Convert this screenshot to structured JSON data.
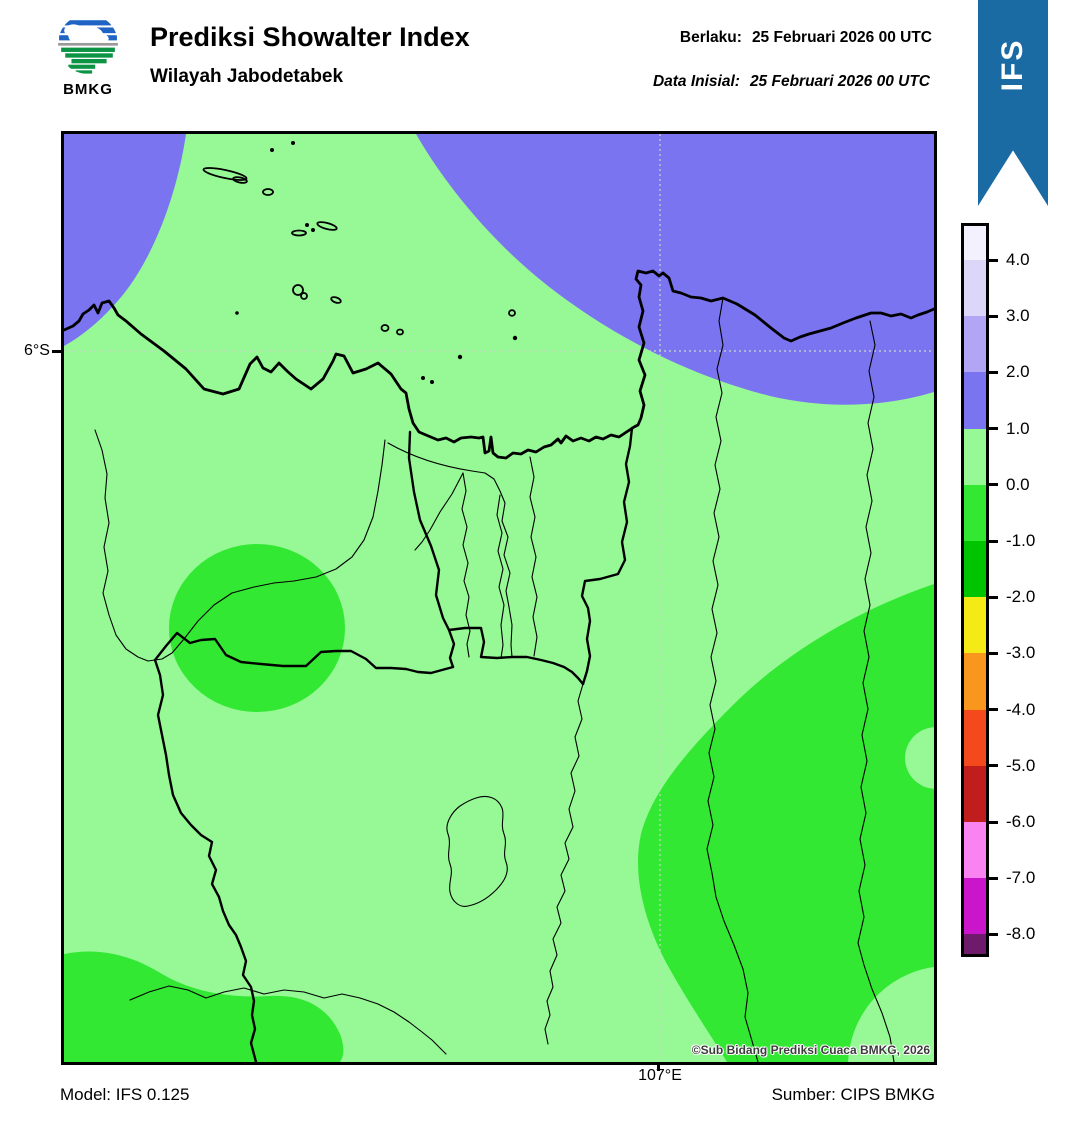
{
  "header": {
    "logo_text": "BMKG",
    "title": "Prediksi Showalter Index",
    "subtitle": "Wilayah Jabodetabek",
    "berlaku_label": "Berlaku:",
    "berlaku_value": "25 Februari 2026 00 UTC",
    "inisial_label": "Data Inisial:",
    "inisial_value": "25 Februari 2026 00 UTC"
  },
  "ribbon": {
    "label": "IFS",
    "color": "#1A6BA4"
  },
  "map": {
    "lat_label": "6°S",
    "lon_label": "107°E",
    "copyright": "©Sub Bidang Prediksi Cuaca BMKG, 2026"
  },
  "footer": {
    "model": "Model: IFS 0.125",
    "source": "Sumber: CIPS BMKG"
  },
  "palette": {
    "si_above_4": "#F3F1FD",
    "si_3_4": "#DCD7F8",
    "si_2_3": "#B2A5F3",
    "si_1_2": "#7B74F1",
    "si_0_1": "#96F996",
    "si_m1_0": "#33E833",
    "si_m2_m1": "#00C400",
    "si_m3_m2": "#F4EB16",
    "si_m4_m3": "#F8961E",
    "si_m5_m4": "#F4491C",
    "si_m6_m5": "#C01D1D",
    "si_m7_m6": "#F983F0",
    "si_m8_m7": "#CB15CB",
    "si_below_m8": "#6E1B6C"
  },
  "colorbar": {
    "tick_labels": [
      "4.0",
      "3.0",
      "2.0",
      "1.0",
      "0.0",
      "-1.0",
      "-2.0",
      "-3.0",
      "-4.0",
      "-5.0",
      "-6.0",
      "-7.0",
      "-8.0"
    ],
    "segment_colors": [
      "#F3F1FD",
      "#DCD7F8",
      "#B2A5F3",
      "#7B74F1",
      "#96F996",
      "#33E833",
      "#00C400",
      "#F4EB16",
      "#F8961E",
      "#F4491C",
      "#C01D1D",
      "#F983F0",
      "#CB15CB",
      "#6E1B6C"
    ]
  },
  "chart_data": {
    "type": "map",
    "title": "Prediksi Showalter Index",
    "region": "Jabodetabek",
    "valid_time": "25 Februari 2026 00 UTC",
    "init_time": "25 Februari 2026 00 UTC",
    "model": "IFS 0.125",
    "source": "CIPS BMKG",
    "legend_levels": [
      4.0,
      3.0,
      2.0,
      1.0,
      0.0,
      -1.0,
      -2.0,
      -3.0,
      -4.0,
      -5.0,
      -6.0,
      -7.0,
      -8.0
    ],
    "gridlines": {
      "latitude": "6°S",
      "longitude": "107°E"
    },
    "visible_field_summary": [
      {
        "value_range": "1 to 2",
        "color": "#7B74F1",
        "where": "offshore north (top-left corner blob and large top-right sea area)"
      },
      {
        "value_range": "0 to 1",
        "color": "#96F996",
        "where": "most of the land area"
      },
      {
        "value_range": "-1 to 0",
        "color": "#33E833",
        "where": "oval patch west-center, southwest bottom corner, large southeast region"
      }
    ]
  }
}
